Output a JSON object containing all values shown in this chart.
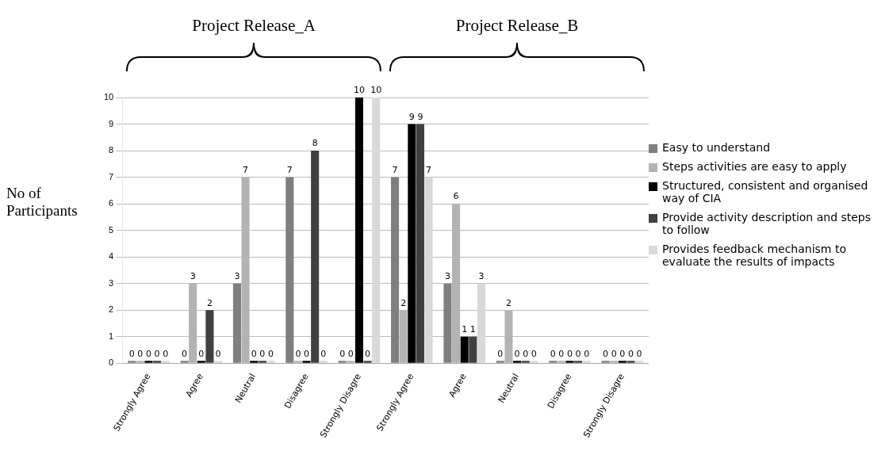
{
  "chart_data": {
    "type": "bar",
    "ylabel": "No of Participants",
    "categories": [
      "Strongly Agree",
      "Agree",
      "Neutral",
      "Disagree",
      "Strongly Disagre",
      "Strongly Agree",
      "Agree",
      "Neutral",
      "Disagree",
      "Strongly Disagre"
    ],
    "series": [
      {
        "name": "Easy to understand",
        "color": "#7f7f7f",
        "values": [
          0,
          0,
          3,
          7,
          0,
          7,
          3,
          0,
          0,
          0
        ]
      },
      {
        "name": "Steps activities are easy to apply",
        "color": "#b3b3b3",
        "values": [
          0,
          3,
          7,
          0,
          0,
          2,
          6,
          2,
          0,
          0
        ]
      },
      {
        "name": "Structured, consistent and organised way of CIA",
        "color": "#000000",
        "values": [
          0,
          0,
          0,
          0,
          10,
          9,
          1,
          0,
          0,
          0
        ]
      },
      {
        "name": "Provide activity description and steps to follow",
        "color": "#404040",
        "values": [
          0,
          2,
          0,
          8,
          0,
          9,
          1,
          0,
          0,
          0
        ]
      },
      {
        "name": "Provides feedback mechanism to evaluate the results of impacts",
        "color": "#d9d9d9",
        "values": [
          0,
          0,
          0,
          0,
          10,
          7,
          3,
          0,
          0,
          0
        ]
      }
    ],
    "annotations": [
      "Project Release_A",
      "Project Release_B"
    ],
    "ylim": [
      0,
      10
    ],
    "yticks": [
      0,
      1,
      2,
      3,
      4,
      5,
      6,
      7,
      8,
      9,
      10
    ],
    "grid": "y",
    "legend": "right",
    "data_labels": true
  }
}
